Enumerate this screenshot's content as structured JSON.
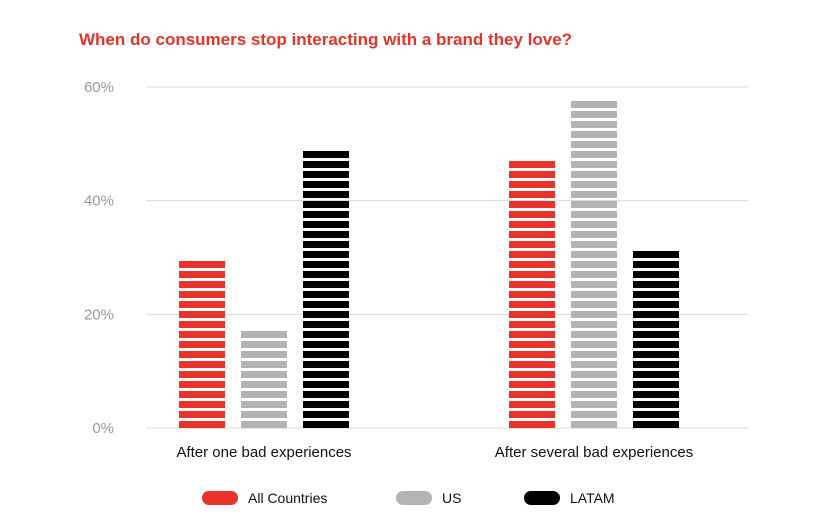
{
  "chart_data": {
    "type": "bar",
    "title": "When do consumers stop interacting with a brand they love?",
    "categories": [
      "After one bad experiences",
      "After several bad experiences"
    ],
    "series": [
      {
        "name": "All Countries",
        "values": [
          30,
          48
        ],
        "color": "#e8322a"
      },
      {
        "name": "US",
        "values": [
          18,
          58
        ],
        "color": "#b3b3b3"
      },
      {
        "name": "LATAM",
        "values": [
          50,
          32
        ],
        "color": "#000000"
      }
    ],
    "yticks": [
      "0%",
      "20%",
      "40%",
      "60%"
    ],
    "ylim": [
      0,
      60
    ],
    "grid": true,
    "legend": "bottom",
    "colors": {
      "title": "#e8322a",
      "grid": "#d9d9d9"
    }
  }
}
